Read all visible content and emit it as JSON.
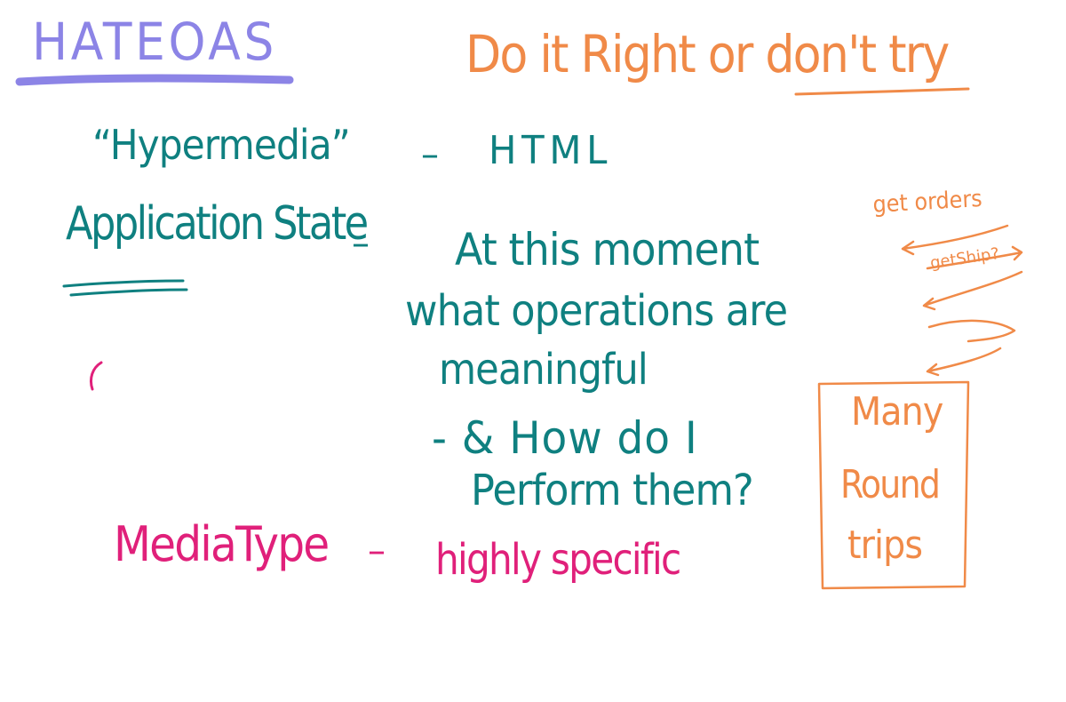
{
  "colors": {
    "title": "#8c84e6",
    "heading": "#f08a48",
    "teal": "#0f8080",
    "magenta": "#e0207a",
    "orange": "#f08a48"
  },
  "title": "HATEOAS",
  "heading": "Do it Right or don't try",
  "rows": {
    "hypermedia": {
      "term": "“Hypermedia”",
      "dash": "–",
      "value": "HTML"
    },
    "application_state": {
      "term": "Application State",
      "dash": "–",
      "answer_lines": [
        "At this moment",
        "what operations are",
        "meaningful",
        "- & How do I",
        "Perform them?"
      ]
    },
    "media_type": {
      "term": "MediaType",
      "dash": "–",
      "value": "highly specific"
    }
  },
  "side_notes": {
    "get_orders": "get orders",
    "get_ship": "getShip?"
  },
  "box": {
    "lines": [
      "Many",
      "Round",
      "trips"
    ]
  }
}
